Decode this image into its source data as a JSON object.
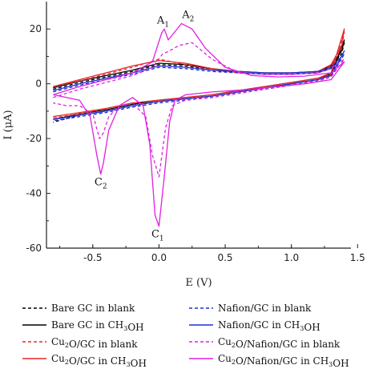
{
  "chart_data": {
    "type": "line",
    "xlabel": "E (V)",
    "ylabel": "I (μA)",
    "xlim": [
      -0.85,
      1.45
    ],
    "ylim": [
      -60,
      30
    ],
    "xticks": [
      -0.5,
      0.0,
      0.5,
      1.0,
      1.5
    ],
    "xtick_labels": [
      "-0.5",
      "0.0",
      "0.5",
      "1.0",
      "1.5"
    ],
    "yticks": [
      -60,
      -40,
      -20,
      0,
      20
    ],
    "ytick_labels": [
      "-60",
      "-40",
      "-20",
      "0",
      "20"
    ],
    "grid": false,
    "legend_position": "bottom",
    "annotations": [
      {
        "label": "A",
        "sub": "1",
        "x": 0.03,
        "y": 22
      },
      {
        "label": "A",
        "sub": "2",
        "x": 0.22,
        "y": 24
      },
      {
        "label": "C",
        "sub": "2",
        "x": -0.44,
        "y": -37
      },
      {
        "label": "C",
        "sub": "1",
        "x": -0.01,
        "y": -56
      }
    ],
    "series": [
      {
        "name": "Bare GC in blank",
        "label_parts": [
          [
            "Bare GC in blank",
            ""
          ]
        ],
        "color": "#000000",
        "dash": "dashed",
        "x": [
          -0.8,
          -0.6,
          -0.4,
          -0.2,
          0.0,
          0.2,
          0.4,
          0.6,
          0.8,
          1.0,
          1.2,
          1.3,
          1.38,
          1.4,
          1.3,
          1.2,
          1.0,
          0.8,
          0.6,
          0.4,
          0.2,
          0.0,
          -0.2,
          -0.4,
          -0.6,
          -0.8
        ],
        "y": [
          -2,
          0.5,
          2.5,
          4.5,
          7,
          6.5,
          5,
          4,
          3.5,
          3.5,
          4,
          6,
          11,
          15,
          3,
          1.5,
          0,
          -1.5,
          -3,
          -4.5,
          -5.5,
          -6.5,
          -8,
          -10,
          -11.5,
          -14
        ]
      },
      {
        "name": "Bare GC in CH3OH",
        "label_parts": [
          [
            "Bare GC in CH",
            ""
          ],
          [
            "3",
            "sub"
          ],
          [
            "OH",
            ""
          ]
        ],
        "color": "#000000",
        "dash": "solid",
        "x": [
          -0.8,
          -0.6,
          -0.4,
          -0.2,
          0.0,
          0.2,
          0.4,
          0.6,
          0.8,
          1.0,
          1.2,
          1.3,
          1.38,
          1.4,
          1.3,
          1.2,
          1.0,
          0.8,
          0.6,
          0.4,
          0.2,
          0.0,
          -0.2,
          -0.4,
          -0.6,
          -0.8
        ],
        "y": [
          -1.5,
          1,
          3,
          5,
          7.5,
          7,
          5.5,
          4.5,
          4,
          4,
          4.5,
          6.5,
          12,
          16,
          3.5,
          2,
          0.5,
          -1,
          -2.5,
          -4,
          -5,
          -6,
          -7.5,
          -9.5,
          -11,
          -13
        ]
      },
      {
        "name": "Cu2O/GC in blank",
        "label_parts": [
          [
            "Cu",
            ""
          ],
          [
            "2",
            "sub"
          ],
          [
            "O/GC in blank",
            ""
          ]
        ],
        "color": "#e8262a",
        "dash": "dashed",
        "x": [
          -0.8,
          -0.6,
          -0.4,
          -0.2,
          0.0,
          0.2,
          0.4,
          0.6,
          0.8,
          1.0,
          1.2,
          1.3,
          1.38,
          1.4,
          1.3,
          1.2,
          1.0,
          0.8,
          0.6,
          0.4,
          0.2,
          0.0,
          -0.2,
          -0.4,
          -0.6,
          -0.8
        ],
        "y": [
          -1,
          1,
          3.5,
          6,
          9,
          7,
          5,
          4,
          3.5,
          3.5,
          4,
          6.5,
          13,
          19,
          3.5,
          1.5,
          0,
          -1.5,
          -3,
          -4.5,
          -5.5,
          -6,
          -7,
          -9,
          -11,
          -12.5
        ]
      },
      {
        "name": "Cu2O/GC in CH3OH",
        "label_parts": [
          [
            "Cu",
            ""
          ],
          [
            "2",
            "sub"
          ],
          [
            "O/GC in CH",
            ""
          ],
          [
            "3",
            "sub"
          ],
          [
            "OH",
            ""
          ]
        ],
        "color": "#e8262a",
        "dash": "solid",
        "x": [
          -0.8,
          -0.6,
          -0.4,
          -0.2,
          0.0,
          0.2,
          0.4,
          0.6,
          0.8,
          1.0,
          1.2,
          1.3,
          1.38,
          1.4,
          1.3,
          1.2,
          1.0,
          0.8,
          0.6,
          0.4,
          0.2,
          0.0,
          -0.2,
          -0.4,
          -0.6,
          -0.8
        ],
        "y": [
          -1,
          1.5,
          4,
          6.5,
          8.5,
          7.5,
          5.5,
          4.5,
          4,
          4,
          4.5,
          7,
          14,
          20,
          4,
          2,
          0.5,
          -1,
          -2.5,
          -4,
          -5,
          -6,
          -7,
          -9,
          -10.5,
          -12
        ]
      },
      {
        "name": "Nafion/GC in blank",
        "label_parts": [
          [
            "Nafion/GC in blank",
            ""
          ]
        ],
        "color": "#1f2fd6",
        "dash": "dashed",
        "x": [
          -0.8,
          -0.6,
          -0.4,
          -0.2,
          0.0,
          0.2,
          0.4,
          0.6,
          0.8,
          1.0,
          1.2,
          1.3,
          1.38,
          1.4,
          1.3,
          1.2,
          1.0,
          0.8,
          0.6,
          0.4,
          0.2,
          0.0,
          -0.2,
          -0.4,
          -0.6,
          -0.8
        ],
        "y": [
          -3,
          -0.5,
          1.5,
          3.5,
          6,
          5.5,
          4.5,
          4,
          3.5,
          3.5,
          4,
          5.5,
          9,
          11,
          2.5,
          1,
          -0.5,
          -2,
          -3.5,
          -5,
          -6,
          -7,
          -8.5,
          -10.5,
          -12,
          -13.5
        ]
      },
      {
        "name": "Nafion/GC in CH3OH",
        "label_parts": [
          [
            "Nafion/GC in CH",
            ""
          ],
          [
            "3",
            "sub"
          ],
          [
            "OH",
            ""
          ]
        ],
        "color": "#1f2fd6",
        "dash": "solid",
        "x": [
          -0.8,
          -0.6,
          -0.4,
          -0.2,
          0.0,
          0.2,
          0.4,
          0.6,
          0.8,
          1.0,
          1.2,
          1.3,
          1.38,
          1.4,
          1.3,
          1.2,
          1.0,
          0.8,
          0.6,
          0.4,
          0.2,
          0.0,
          -0.2,
          -0.4,
          -0.6,
          -0.8
        ],
        "y": [
          -2.5,
          0,
          2,
          4,
          6.5,
          6,
          5,
          4.5,
          4,
          4,
          4.5,
          6,
          10,
          12,
          3,
          1.5,
          0,
          -1.5,
          -3,
          -4.5,
          -5.5,
          -6.5,
          -8,
          -10,
          -11.5,
          -13
        ]
      },
      {
        "name": "Cu2O/Nafion/GC in blank",
        "label_parts": [
          [
            "Cu",
            ""
          ],
          [
            "2",
            "sub"
          ],
          [
            "O/Nafion/GC in blank",
            ""
          ]
        ],
        "color": "#e21fe0",
        "dash": "dashed",
        "x": [
          -0.8,
          -0.6,
          -0.4,
          -0.2,
          -0.05,
          0.03,
          0.08,
          0.15,
          0.25,
          0.4,
          0.6,
          0.8,
          1.0,
          1.2,
          1.3,
          1.4,
          1.3,
          1.2,
          1.0,
          0.8,
          0.6,
          0.4,
          0.2,
          0.1,
          0.05,
          0.0,
          -0.05,
          -0.1,
          -0.2,
          -0.3,
          -0.38,
          -0.42,
          -0.45,
          -0.5,
          -0.6,
          -0.7,
          -0.8
        ],
        "y": [
          -5,
          -2,
          0.5,
          3,
          6,
          11,
          12,
          14,
          15,
          9,
          4,
          3.5,
          3.5,
          4,
          5.5,
          9,
          2.5,
          1,
          -0.5,
          -2,
          -3.5,
          -5,
          -6,
          -8,
          -16,
          -34,
          -26,
          -12,
          -7,
          -8,
          -12,
          -18,
          -20,
          -11,
          -8,
          -8,
          -7
        ]
      },
      {
        "name": "Cu2O/Nafion/GC in CH3OH",
        "label_parts": [
          [
            "Cu",
            ""
          ],
          [
            "2",
            "sub"
          ],
          [
            "O/Nafion/GC in CH",
            ""
          ],
          [
            "3",
            "sub"
          ],
          [
            "OH",
            ""
          ]
        ],
        "color": "#e21fe0",
        "dash": "solid",
        "x": [
          -0.8,
          -0.6,
          -0.4,
          -0.2,
          -0.05,
          0.02,
          0.04,
          0.07,
          0.12,
          0.17,
          0.25,
          0.35,
          0.5,
          0.7,
          0.9,
          1.1,
          1.3,
          1.4,
          1.3,
          1.1,
          0.9,
          0.7,
          0.4,
          0.2,
          0.12,
          0.08,
          0.04,
          0.0,
          -0.03,
          -0.07,
          -0.12,
          -0.2,
          -0.3,
          -0.38,
          -0.42,
          -0.44,
          -0.47,
          -0.52,
          -0.6,
          -0.7,
          -0.8
        ],
        "y": [
          -4,
          -1,
          1.5,
          4,
          8,
          18.5,
          20,
          16,
          19,
          22,
          20,
          13,
          6,
          3,
          2.5,
          2.8,
          4,
          8,
          1.5,
          0,
          -1,
          -2,
          -3,
          -4,
          -6,
          -14,
          -34,
          -52,
          -48,
          -22,
          -8,
          -5,
          -8,
          -17,
          -29,
          -33,
          -26,
          -12,
          -6,
          -5,
          -4
        ]
      }
    ]
  }
}
